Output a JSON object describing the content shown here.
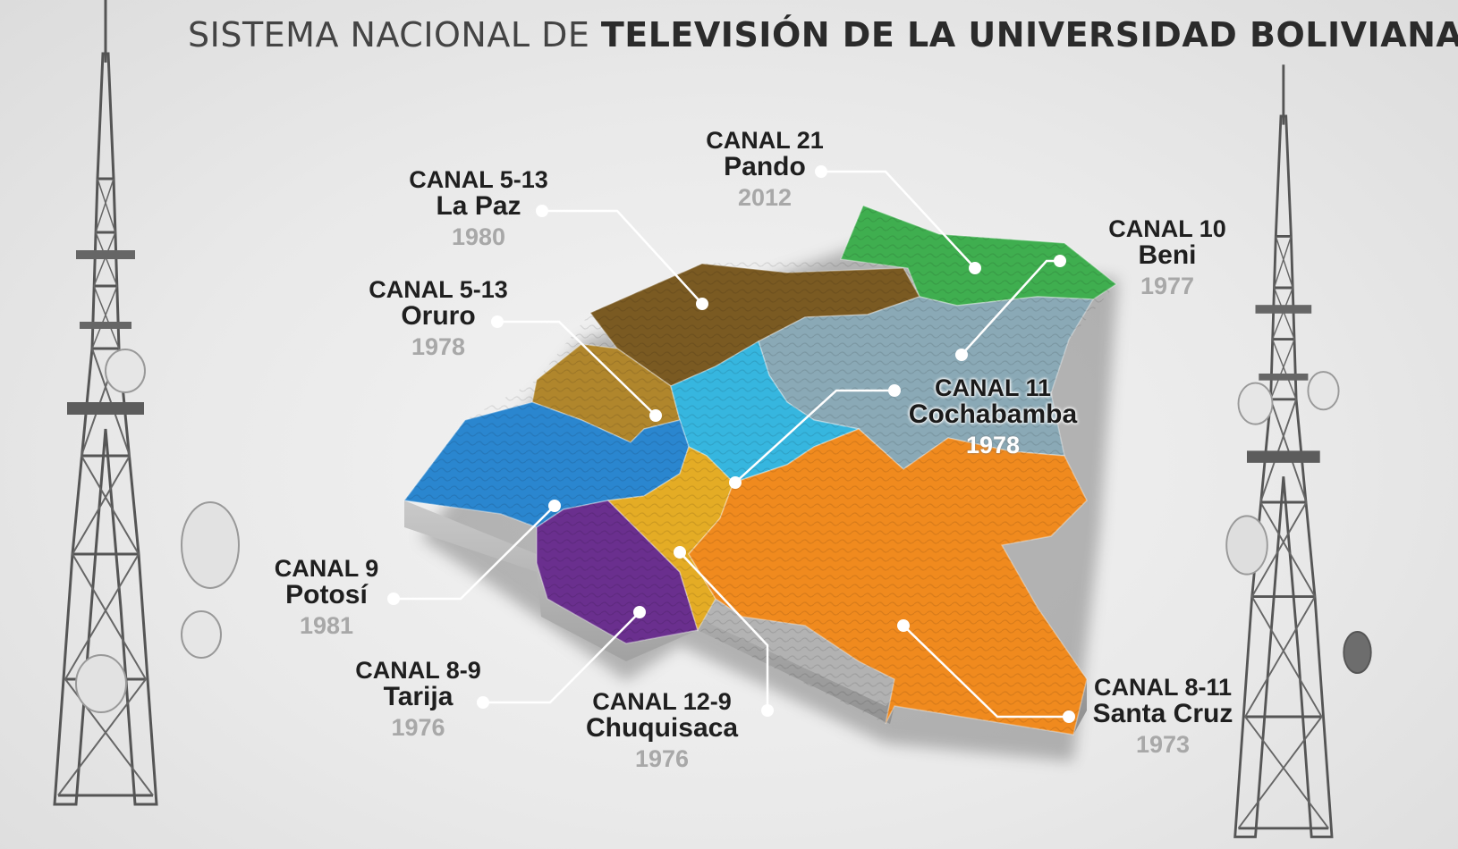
{
  "title": {
    "light": "SISTEMA NACIONAL DE",
    "bold": "TELEVISIÓN DE LA UNIVERSIDAD BOLIVIANA"
  },
  "stations": {
    "pando": {
      "channel": "CANAL 21",
      "department": "Pando",
      "year": "2012"
    },
    "lapaz": {
      "channel": "CANAL 5-13",
      "department": "La Paz",
      "year": "1980"
    },
    "beni": {
      "channel": "CANAL 10",
      "department": "Beni",
      "year": "1977"
    },
    "oruro": {
      "channel": "CANAL 5-13",
      "department": "Oruro",
      "year": "1978"
    },
    "cochabamba": {
      "channel": "CANAL 11",
      "department": "Cochabamba",
      "year": "1978"
    },
    "potosi": {
      "channel": "CANAL 9",
      "department": "Potosí",
      "year": "1981"
    },
    "tarija": {
      "channel": "CANAL 8-9",
      "department": "Tarija",
      "year": "1976"
    },
    "chuquisaca": {
      "channel": "CANAL 12-9",
      "department": "Chuquisaca",
      "year": "1976"
    },
    "santacruz": {
      "channel": "CANAL 8-11",
      "department": "Santa Cruz",
      "year": "1973"
    }
  },
  "colors": {
    "pando": "#3fae4f",
    "lapaz": "#7a5a22",
    "beni": "#8aa9b6",
    "oruro": "#b0862c",
    "cochabamba": "#36b6df",
    "potosi": "#2a86cf",
    "tarija": "#6a2f8e",
    "chuquisaca": "#e4ac25",
    "santacruz": "#f08a1e",
    "base": "#a9a9a9",
    "leader": "#ffffff"
  },
  "icons": {
    "tower": "transmission-tower-icon",
    "dish": "satellite-dish-icon"
  }
}
